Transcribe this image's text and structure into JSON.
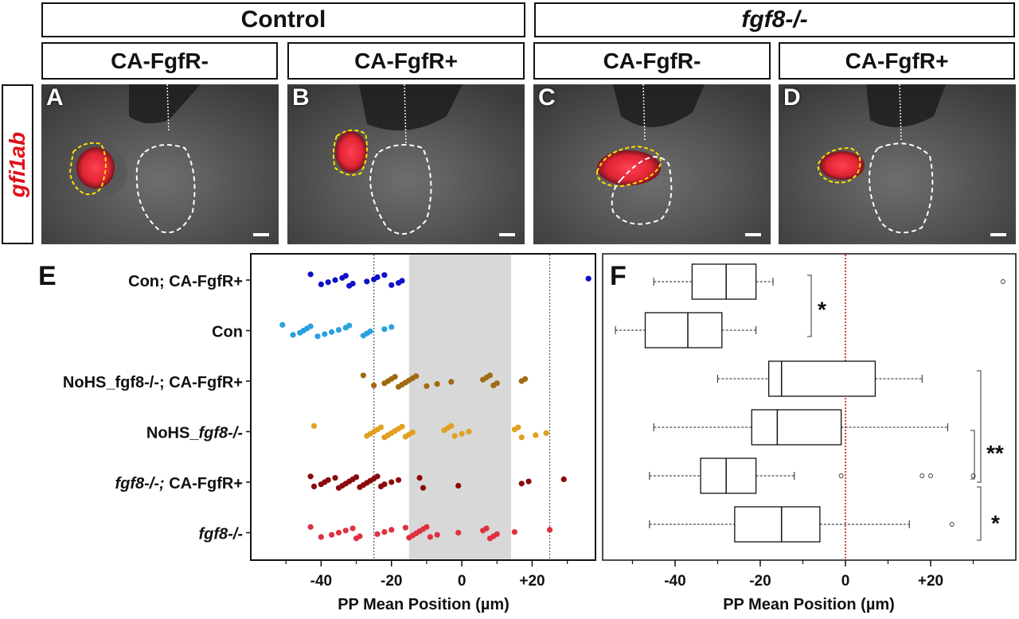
{
  "figure": {
    "group_headers": [
      "Control",
      "fgf8-/-"
    ],
    "column_headers": [
      "CA-FgfR-",
      "CA-FgfR+",
      "CA-FgfR-",
      "CA-FgfR+"
    ],
    "row_label": "gfi1ab",
    "panel_labels": [
      "A",
      "B",
      "C",
      "D"
    ],
    "chart_labels": [
      "E",
      "F"
    ]
  },
  "colors": {
    "con_ca": "#1010c8",
    "con": "#2aa0e0",
    "nohs_ca": "#a06a10",
    "nohs": "#e0a020",
    "fgf8_ca": "#8a0a0a",
    "fgf8": "#e03040",
    "median_line": "#cc0000",
    "band": "#d8d8d8"
  },
  "chart_data": [
    {
      "type": "scatter",
      "panel": "E",
      "xlabel": "PP Mean Position (µm)",
      "xlim": [
        -60,
        38
      ],
      "xticks": [
        -40,
        -20,
        0,
        20
      ],
      "xtick_labels": [
        "-40",
        "-20",
        "0",
        "+20"
      ],
      "shaded_band": [
        -15,
        14
      ],
      "reference_lines": [
        -25,
        25
      ],
      "categories": [
        "Con; CA-FgfR+",
        "Con",
        "NoHS_fgf8-/-; CA-FgfR+",
        "NoHS_fgf8-/-",
        "fgf8-/-; CA-FgfR+",
        "fgf8-/-"
      ],
      "series": [
        {
          "color_key": "con_ca",
          "values": [
            -43,
            -40,
            -38,
            -36,
            -34,
            -33,
            -32,
            -31,
            -27,
            -25,
            -24,
            -22,
            -20,
            -18,
            -17,
            36
          ]
        },
        {
          "color_key": "con",
          "values": [
            -51,
            -48,
            -46,
            -45,
            -44,
            -43,
            -41,
            -39,
            -37,
            -35,
            -33,
            -32,
            -28,
            -27,
            -26,
            -22,
            -20
          ]
        },
        {
          "color_key": "nohs_ca",
          "values": [
            -28,
            -25,
            -22,
            -21,
            -20,
            -19,
            -18,
            -17,
            -16,
            -15,
            -14,
            -13,
            -10,
            -7,
            -3,
            6,
            7,
            8,
            9,
            10,
            17,
            18
          ]
        },
        {
          "color_key": "nohs",
          "values": [
            -42,
            -27,
            -26,
            -25,
            -24,
            -23,
            -22,
            -21,
            -20,
            -19,
            -18,
            -17,
            -16,
            -15,
            -14,
            -5,
            -4,
            -3,
            -2,
            0,
            2,
            15,
            16,
            17,
            21,
            24
          ]
        },
        {
          "color_key": "fgf8_ca",
          "values": [
            -43,
            -42,
            -40,
            -39,
            -38,
            -36,
            -35,
            -34,
            -33,
            -32,
            -31,
            -30,
            -29,
            -28,
            -27,
            -26,
            -25,
            -24,
            -23,
            -22,
            -20,
            -18,
            -12,
            -11,
            -1,
            17,
            19,
            29
          ]
        },
        {
          "color_key": "fgf8",
          "values": [
            -43,
            -40,
            -37,
            -35,
            -33,
            -31,
            -30,
            -29,
            -24,
            -22,
            -20,
            -16,
            -15,
            -14,
            -13,
            -12,
            -11,
            -10,
            -9,
            -7,
            -1,
            6,
            7,
            8,
            9,
            10,
            15,
            25
          ]
        }
      ]
    },
    {
      "type": "box",
      "panel": "F",
      "xlabel": "PP Mean Position (µm)",
      "xlim": [
        -57,
        40
      ],
      "xticks": [
        -40,
        -20,
        0,
        20
      ],
      "xtick_labels": [
        "-40",
        "-20",
        "0",
        "+20"
      ],
      "reference_line": 0,
      "boxes": [
        {
          "min": -45,
          "q1": -36,
          "median": -28,
          "q3": -21,
          "max": -17,
          "outliers": [
            37
          ]
        },
        {
          "min": -54,
          "q1": -47,
          "median": -37,
          "q3": -29,
          "max": -21,
          "outliers": []
        },
        {
          "min": -30,
          "q1": -18,
          "median": -15,
          "q3": 7,
          "max": 18,
          "outliers": []
        },
        {
          "min": -45,
          "q1": -22,
          "median": -16,
          "q3": -1,
          "max": 24,
          "outliers": []
        },
        {
          "min": -46,
          "q1": -34,
          "median": -28,
          "q3": -21,
          "max": -12,
          "outliers": [
            -1,
            18,
            20,
            30
          ]
        },
        {
          "min": -46,
          "q1": -26,
          "median": -15,
          "q3": -6,
          "max": 15,
          "outliers": [
            25
          ]
        }
      ],
      "significance": [
        {
          "rows": [
            0,
            1
          ],
          "label": "*"
        },
        {
          "rows": [
            2,
            4
          ],
          "label": "**"
        },
        {
          "rows": [
            3,
            4
          ],
          "label": "**"
        },
        {
          "rows": [
            4,
            5
          ],
          "label": "*"
        }
      ]
    }
  ]
}
